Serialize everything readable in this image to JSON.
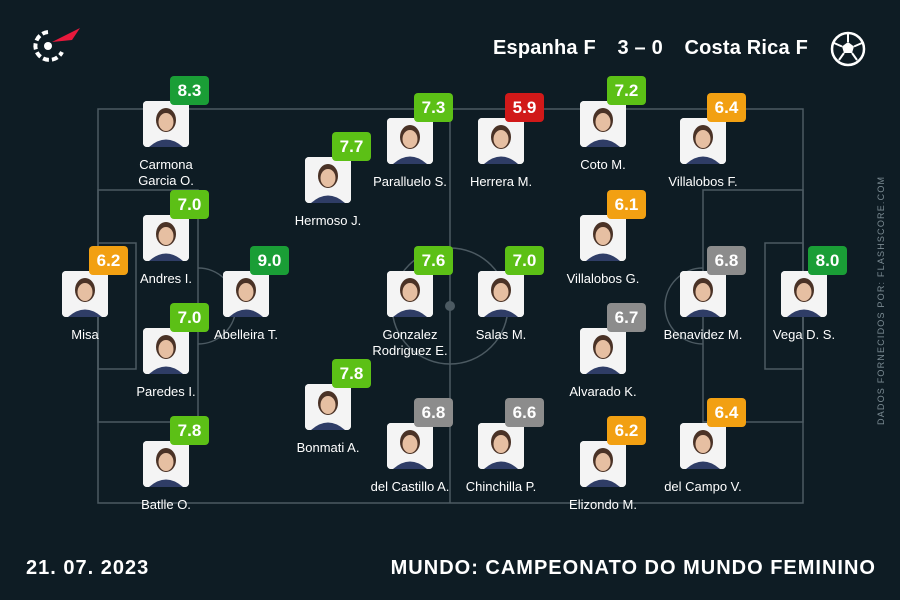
{
  "header": {
    "home_team": "Espanha F",
    "score": "3 – 0",
    "away_team": "Costa Rica F"
  },
  "source_credit": "DADOS FORNECIDOS POR: FLASHSCORE.COM",
  "footer": {
    "date": "21. 07. 2023",
    "competition": "MUNDO: CAMPEONATO DO MUNDO FEMININO"
  },
  "colors": {
    "background": "#0e1c24",
    "rating_high": "#1a9e36",
    "rating_good": "#5cc016",
    "rating_mid": "#8c8c8c",
    "rating_low": "#f2a012",
    "rating_bad": "#d11919",
    "accent_red": "#e8193c"
  },
  "icons": {
    "logo": "flashscore-logo-icon",
    "ball": "football-icon"
  },
  "players": [
    {
      "id": "p1",
      "name": "Misa",
      "rating": "6.2",
      "band": "low"
    },
    {
      "id": "p2",
      "name": "Carmona\nGarcia O.",
      "rating": "8.3",
      "band": "high"
    },
    {
      "id": "p3",
      "name": "Andres I.",
      "rating": "7.0",
      "band": "good"
    },
    {
      "id": "p4",
      "name": "Paredes I.",
      "rating": "7.0",
      "band": "good"
    },
    {
      "id": "p5",
      "name": "Batlle O.",
      "rating": "7.8",
      "band": "good"
    },
    {
      "id": "p6",
      "name": "Abelleira T.",
      "rating": "9.0",
      "band": "high"
    },
    {
      "id": "p7",
      "name": "Hermoso J.",
      "rating": "7.7",
      "band": "good"
    },
    {
      "id": "p8",
      "name": "Bonmati A.",
      "rating": "7.8",
      "band": "good"
    },
    {
      "id": "p9",
      "name": "Paralluelo S.",
      "rating": "7.3",
      "band": "good"
    },
    {
      "id": "p10",
      "name": "Gonzalez\nRodriguez E.",
      "rating": "7.6",
      "band": "good"
    },
    {
      "id": "p11",
      "name": "del Castillo A.",
      "rating": "6.8",
      "band": "mid"
    },
    {
      "id": "p12",
      "name": "Herrera M.",
      "rating": "5.9",
      "band": "bad"
    },
    {
      "id": "p13",
      "name": "Salas M.",
      "rating": "7.0",
      "band": "good"
    },
    {
      "id": "p14",
      "name": "Chinchilla P.",
      "rating": "6.6",
      "band": "mid"
    },
    {
      "id": "p15",
      "name": "Coto M.",
      "rating": "7.2",
      "band": "good"
    },
    {
      "id": "p16",
      "name": "Villalobos G.",
      "rating": "6.1",
      "band": "low"
    },
    {
      "id": "p17",
      "name": "Alvarado K.",
      "rating": "6.7",
      "band": "mid"
    },
    {
      "id": "p18",
      "name": "Elizondo M.",
      "rating": "6.2",
      "band": "low"
    },
    {
      "id": "p19",
      "name": "Villalobos F.",
      "rating": "6.4",
      "band": "low"
    },
    {
      "id": "p20",
      "name": "Benavidez M.",
      "rating": "6.8",
      "band": "mid"
    },
    {
      "id": "p21",
      "name": "del Campo V.",
      "rating": "6.4",
      "band": "low"
    },
    {
      "id": "p22",
      "name": "Vega D. S.",
      "rating": "8.0",
      "band": "high"
    }
  ]
}
